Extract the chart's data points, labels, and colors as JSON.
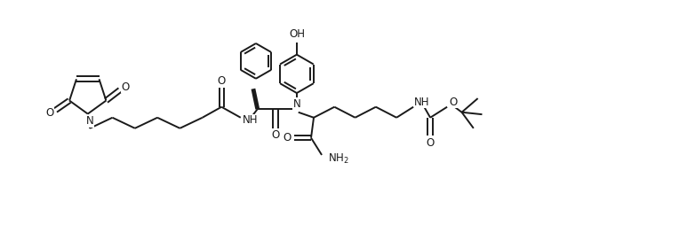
{
  "bg_color": "#ffffff",
  "line_color": "#1a1a1a",
  "line_width": 1.4,
  "font_size": 8.5,
  "fig_width": 7.64,
  "fig_height": 2.8,
  "xlim": [
    -0.5,
    11.0
  ],
  "ylim": [
    -0.8,
    3.8
  ]
}
